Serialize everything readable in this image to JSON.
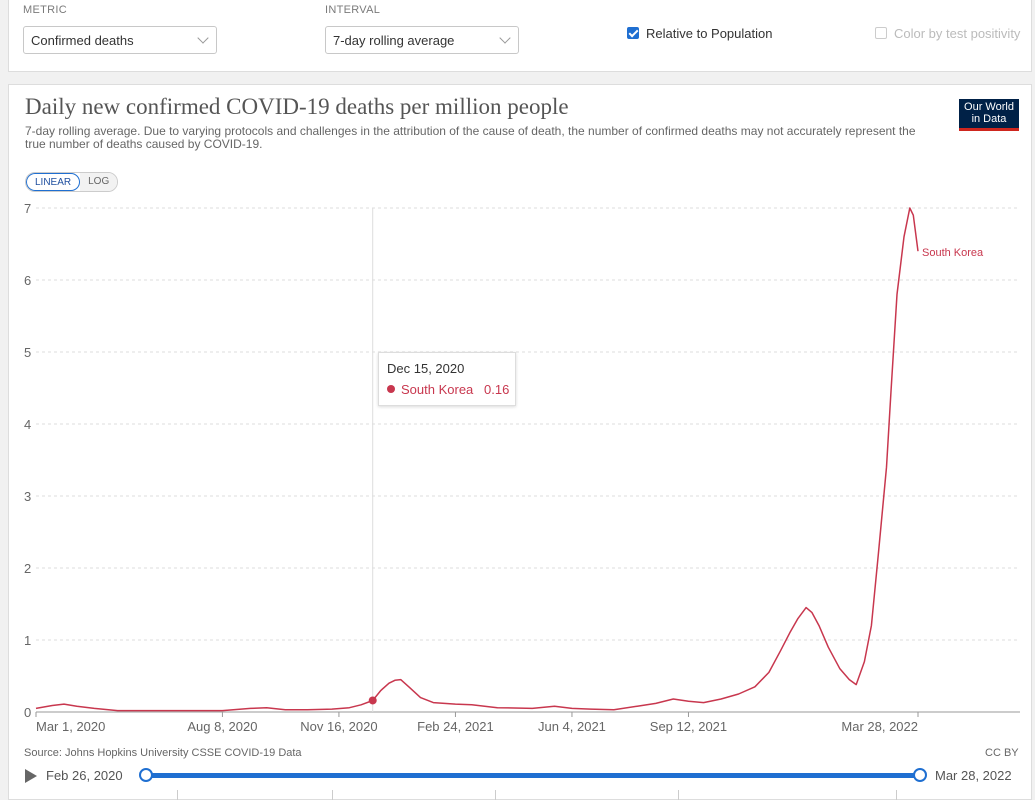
{
  "controls": {
    "metric_label": "METRIC",
    "metric_value": "Confirmed deaths",
    "interval_label": "INTERVAL",
    "interval_value": "7-day rolling average",
    "relative_label": "Relative to Population",
    "relative_checked": true,
    "positivity_label": "Color by test positivity",
    "positivity_checked": false
  },
  "header": {
    "logo": "Our World in Data"
  },
  "scale_toggle": {
    "linear": "LINEAR",
    "log": "LOG",
    "active": "linear"
  },
  "tooltip": {
    "date": "Dec 15, 2020",
    "entity": "South Korea",
    "value": "0.16"
  },
  "footer": {
    "source": "Source: Johns Hopkins University CSSE COVID-19 Data",
    "license": "CC BY"
  },
  "timeline": {
    "start": "Feb 26, 2020",
    "end": "Mar 28, 2022"
  },
  "colors": {
    "series": "#c8374e",
    "accent": "#1f6fd1"
  },
  "chart_data": {
    "type": "line",
    "title": "Daily new confirmed COVID-19 deaths per million people",
    "subtitle": "7-day rolling average. Due to varying protocols and challenges in the attribution of the cause of death, the number of confirmed deaths may not accurately represent the true number of deaths caused by COVID-19.",
    "xlabel": "",
    "ylabel": "",
    "ylim": [
      0,
      7
    ],
    "yticks": [
      0,
      1,
      2,
      3,
      4,
      5,
      6,
      7
    ],
    "xlim": [
      "2020-03-01",
      "2022-03-28"
    ],
    "xticks": [
      "2020-03-01",
      "2020-08-08",
      "2020-11-16",
      "2021-02-24",
      "2021-06-04",
      "2021-09-12",
      "2022-03-28"
    ],
    "xtick_labels": [
      "Mar 1, 2020",
      "Aug 8, 2020",
      "Nov 16, 2020",
      "Feb 24, 2021",
      "Jun 4, 2021",
      "Sep 12, 2021",
      "Mar 28, 2022"
    ],
    "grid": "horizontal dashed",
    "legend": "inline label at line end",
    "highlight": {
      "date": "2020-12-15",
      "value": 0.16
    },
    "series": [
      {
        "name": "South Korea",
        "label_value": "South Korea",
        "points": [
          [
            "2020-03-01",
            0.05
          ],
          [
            "2020-03-15",
            0.09
          ],
          [
            "2020-03-25",
            0.11
          ],
          [
            "2020-04-05",
            0.08
          ],
          [
            "2020-04-20",
            0.05
          ],
          [
            "2020-05-10",
            0.02
          ],
          [
            "2020-06-10",
            0.02
          ],
          [
            "2020-07-10",
            0.02
          ],
          [
            "2020-08-08",
            0.02
          ],
          [
            "2020-09-01",
            0.05
          ],
          [
            "2020-09-15",
            0.06
          ],
          [
            "2020-10-01",
            0.03
          ],
          [
            "2020-10-20",
            0.03
          ],
          [
            "2020-11-10",
            0.04
          ],
          [
            "2020-11-25",
            0.06
          ],
          [
            "2020-12-05",
            0.1
          ],
          [
            "2020-12-15",
            0.16
          ],
          [
            "2020-12-22",
            0.3
          ],
          [
            "2020-12-29",
            0.4
          ],
          [
            "2021-01-03",
            0.44
          ],
          [
            "2021-01-08",
            0.45
          ],
          [
            "2021-01-15",
            0.35
          ],
          [
            "2021-01-25",
            0.2
          ],
          [
            "2021-02-05",
            0.13
          ],
          [
            "2021-02-24",
            0.11
          ],
          [
            "2021-03-10",
            0.1
          ],
          [
            "2021-04-01",
            0.06
          ],
          [
            "2021-05-01",
            0.05
          ],
          [
            "2021-05-20",
            0.08
          ],
          [
            "2021-06-04",
            0.05
          ],
          [
            "2021-06-20",
            0.04
          ],
          [
            "2021-07-10",
            0.03
          ],
          [
            "2021-07-30",
            0.08
          ],
          [
            "2021-08-15",
            0.12
          ],
          [
            "2021-08-30",
            0.18
          ],
          [
            "2021-09-12",
            0.15
          ],
          [
            "2021-09-25",
            0.13
          ],
          [
            "2021-10-10",
            0.18
          ],
          [
            "2021-10-25",
            0.25
          ],
          [
            "2021-11-08",
            0.35
          ],
          [
            "2021-11-20",
            0.55
          ],
          [
            "2021-11-30",
            0.85
          ],
          [
            "2021-12-08",
            1.1
          ],
          [
            "2021-12-15",
            1.3
          ],
          [
            "2021-12-22",
            1.45
          ],
          [
            "2021-12-27",
            1.38
          ],
          [
            "2022-01-02",
            1.2
          ],
          [
            "2022-01-10",
            0.9
          ],
          [
            "2022-01-20",
            0.6
          ],
          [
            "2022-01-28",
            0.45
          ],
          [
            "2022-02-03",
            0.38
          ],
          [
            "2022-02-10",
            0.7
          ],
          [
            "2022-02-16",
            1.2
          ],
          [
            "2022-02-22",
            2.2
          ],
          [
            "2022-03-01",
            3.4
          ],
          [
            "2022-03-05",
            4.5
          ],
          [
            "2022-03-10",
            5.8
          ],
          [
            "2022-03-16",
            6.6
          ],
          [
            "2022-03-21",
            7.0
          ],
          [
            "2022-03-24",
            6.9
          ],
          [
            "2022-03-28",
            6.4
          ]
        ]
      }
    ]
  }
}
